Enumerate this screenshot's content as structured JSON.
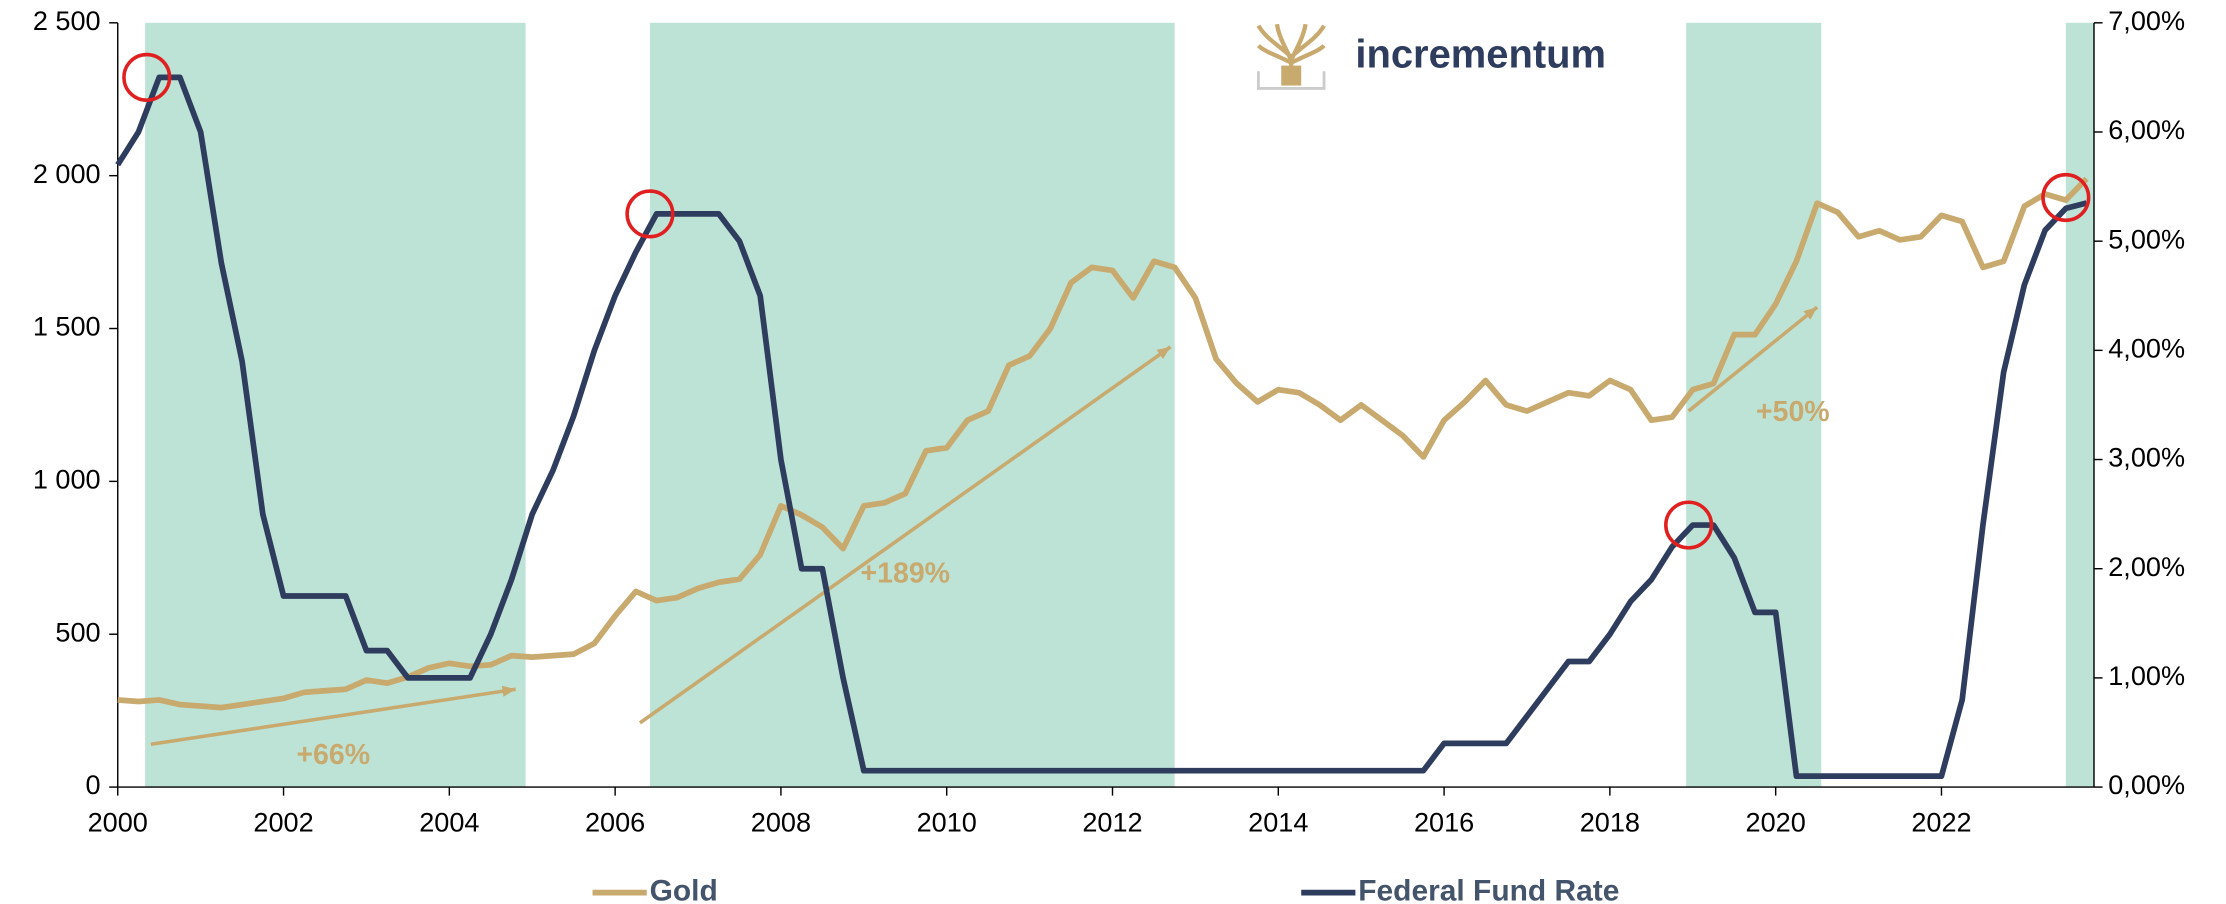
{
  "chart_data": {
    "type": "line",
    "brand": "incrementum",
    "x": [
      2000,
      2000.25,
      2000.5,
      2000.75,
      2001,
      2001.25,
      2001.5,
      2001.75,
      2002,
      2002.25,
      2002.5,
      2002.75,
      2003,
      2003.25,
      2003.5,
      2003.75,
      2004,
      2004.25,
      2004.5,
      2004.75,
      2005,
      2005.25,
      2005.5,
      2005.75,
      2006,
      2006.25,
      2006.5,
      2006.75,
      2007,
      2007.25,
      2007.5,
      2007.75,
      2008,
      2008.25,
      2008.5,
      2008.75,
      2009,
      2009.25,
      2009.5,
      2009.75,
      2010,
      2010.25,
      2010.5,
      2010.75,
      2011,
      2011.25,
      2011.5,
      2011.75,
      2012,
      2012.25,
      2012.5,
      2012.75,
      2013,
      2013.25,
      2013.5,
      2013.75,
      2014,
      2014.25,
      2014.5,
      2014.75,
      2015,
      2015.25,
      2015.5,
      2015.75,
      2016,
      2016.25,
      2016.5,
      2016.75,
      2017,
      2017.25,
      2017.5,
      2017.75,
      2018,
      2018.25,
      2018.5,
      2018.75,
      2019,
      2019.25,
      2019.5,
      2019.75,
      2020,
      2020.25,
      2020.5,
      2020.75,
      2021,
      2021.25,
      2021.5,
      2021.75,
      2022,
      2022.25,
      2022.5,
      2022.75,
      2023,
      2023.25,
      2023.5,
      2023.75
    ],
    "series": [
      {
        "name": "Gold",
        "color": "#c8a96e",
        "axis": "y",
        "values": [
          285,
          280,
          285,
          270,
          265,
          260,
          270,
          280,
          290,
          310,
          315,
          320,
          350,
          340,
          360,
          390,
          405,
          395,
          400,
          430,
          425,
          430,
          435,
          470,
          560,
          640,
          610,
          620,
          650,
          670,
          680,
          760,
          920,
          890,
          850,
          780,
          920,
          930,
          960,
          1100,
          1110,
          1200,
          1230,
          1380,
          1410,
          1500,
          1650,
          1700,
          1690,
          1600,
          1720,
          1700,
          1600,
          1400,
          1320,
          1260,
          1300,
          1290,
          1250,
          1200,
          1250,
          1200,
          1150,
          1080,
          1200,
          1260,
          1330,
          1250,
          1230,
          1260,
          1290,
          1280,
          1330,
          1300,
          1200,
          1210,
          1300,
          1320,
          1480,
          1480,
          1580,
          1720,
          1910,
          1880,
          1800,
          1820,
          1790,
          1800,
          1870,
          1850,
          1700,
          1720,
          1900,
          1940,
          1920,
          1990
        ]
      },
      {
        "name": "Federal Fund Rate",
        "color": "#2e3c5e",
        "axis": "y2",
        "values": [
          5.7,
          6.0,
          6.5,
          6.5,
          6.0,
          4.8,
          3.9,
          2.5,
          1.75,
          1.75,
          1.75,
          1.75,
          1.25,
          1.25,
          1.0,
          1.0,
          1.0,
          1.0,
          1.4,
          1.9,
          2.5,
          2.9,
          3.4,
          4.0,
          4.5,
          4.9,
          5.25,
          5.25,
          5.25,
          5.25,
          5.0,
          4.5,
          3.0,
          2.0,
          2.0,
          1.0,
          0.15,
          0.15,
          0.15,
          0.15,
          0.15,
          0.15,
          0.15,
          0.15,
          0.15,
          0.15,
          0.15,
          0.15,
          0.15,
          0.15,
          0.15,
          0.15,
          0.15,
          0.15,
          0.15,
          0.15,
          0.15,
          0.15,
          0.15,
          0.15,
          0.15,
          0.15,
          0.15,
          0.15,
          0.4,
          0.4,
          0.4,
          0.4,
          0.65,
          0.9,
          1.15,
          1.15,
          1.4,
          1.7,
          1.9,
          2.2,
          2.4,
          2.4,
          2.1,
          1.6,
          1.6,
          0.1,
          0.1,
          0.1,
          0.1,
          0.1,
          0.1,
          0.1,
          0.1,
          0.8,
          2.4,
          3.8,
          4.6,
          5.1,
          5.3,
          5.35
        ]
      }
    ],
    "xlim": [
      2000,
      2023.84
    ],
    "xticks": [
      2000,
      2002,
      2004,
      2006,
      2008,
      2010,
      2012,
      2014,
      2016,
      2018,
      2020,
      2022
    ],
    "ylim": [
      0,
      2500
    ],
    "yticks": [
      0,
      500,
      {
        "value": 1000,
        "label": "1 000"
      },
      {
        "value": 1500,
        "label": "1 500"
      },
      {
        "value": 2000,
        "label": "2 000"
      },
      {
        "value": 2500,
        "label": "2 500"
      }
    ],
    "y2lim": [
      0,
      7
    ],
    "y2ticks": [
      {
        "value": 0,
        "label": "0,00%"
      },
      {
        "value": 1,
        "label": "1,00%"
      },
      {
        "value": 2,
        "label": "2,00%"
      },
      {
        "value": 3,
        "label": "3,00%"
      },
      {
        "value": 4,
        "label": "4,00%"
      },
      {
        "value": 5,
        "label": "5,00%"
      },
      {
        "value": 6,
        "label": "6,00%"
      },
      {
        "value": 7,
        "label": "7,00%"
      }
    ],
    "shaded_periods": [
      [
        2000.33,
        2004.92
      ],
      [
        2006.42,
        2012.75
      ],
      [
        2018.92,
        2020.55
      ],
      [
        2023.5,
        2023.84
      ]
    ],
    "shade_color": "#bde3d6",
    "highlight_points": [
      {
        "x": 2000.35,
        "y2": 6.5
      },
      {
        "x": 2006.42,
        "y2": 5.25
      },
      {
        "x": 2018.95,
        "y2": 2.4
      },
      {
        "x": 2023.5,
        "y2": 5.4
      }
    ],
    "highlight_color": "#e02020",
    "arrows": [
      {
        "x": [
          2000.4,
          2004.8
        ],
        "y": [
          140,
          320
        ],
        "label": "+66%"
      },
      {
        "x": [
          2006.3,
          2012.7
        ],
        "y": [
          210,
          1440
        ],
        "label": "+189%"
      },
      {
        "x": [
          2018.95,
          2020.5
        ],
        "y": [
          1230,
          1570
        ],
        "label": "+50%"
      }
    ]
  }
}
